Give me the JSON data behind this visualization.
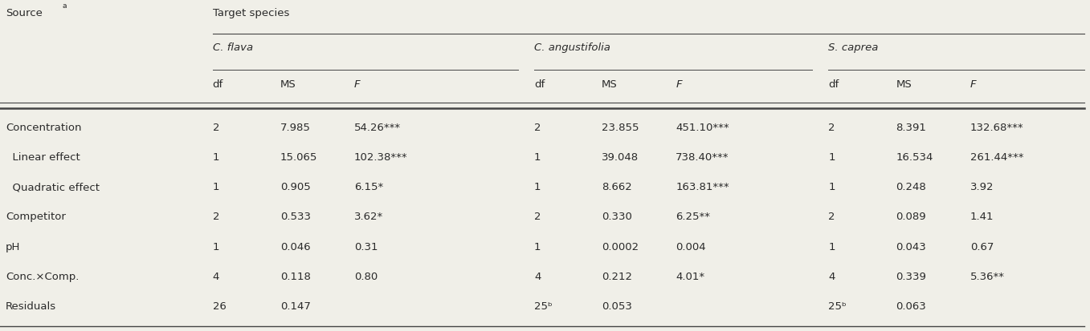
{
  "title_row": "Target species",
  "col_header_source": "Source",
  "source_superscript": "a",
  "species": [
    "C. flava",
    "C. angustifolia",
    "S. caprea"
  ],
  "sub_headers": [
    "df",
    "MS",
    "F"
  ],
  "rows": [
    {
      "source": "Concentration",
      "indent": 0,
      "c_flava": [
        "2",
        "7.985",
        "54.26***"
      ],
      "c_ang": [
        "2",
        "23.855",
        "451.10***"
      ],
      "s_cap": [
        "2",
        "8.391",
        "132.68***"
      ]
    },
    {
      "source": "Linear effect",
      "indent": 1,
      "c_flava": [
        "1",
        "15.065",
        "102.38***"
      ],
      "c_ang": [
        "1",
        "39.048",
        "738.40***"
      ],
      "s_cap": [
        "1",
        "16.534",
        "261.44***"
      ]
    },
    {
      "source": "Quadratic effect",
      "indent": 1,
      "c_flava": [
        "1",
        "0.905",
        "6.15*"
      ],
      "c_ang": [
        "1",
        "8.662",
        "163.81***"
      ],
      "s_cap": [
        "1",
        "0.248",
        "3.92"
      ]
    },
    {
      "source": "Competitor",
      "indent": 0,
      "c_flava": [
        "2",
        "0.533",
        "3.62*"
      ],
      "c_ang": [
        "2",
        "0.330",
        "6.25**"
      ],
      "s_cap": [
        "2",
        "0.089",
        "1.41"
      ]
    },
    {
      "source": "pH",
      "indent": 0,
      "c_flava": [
        "1",
        "0.046",
        "0.31"
      ],
      "c_ang": [
        "1",
        "0.0002",
        "0.004"
      ],
      "s_cap": [
        "1",
        "0.043",
        "0.67"
      ]
    },
    {
      "source": "Conc.×Comp.",
      "indent": 0,
      "c_flava": [
        "4",
        "0.118",
        "0.80"
      ],
      "c_ang": [
        "4",
        "0.212",
        "4.01*"
      ],
      "s_cap": [
        "4",
        "0.339",
        "5.36**"
      ]
    },
    {
      "source": "Residuals",
      "indent": 0,
      "c_flava": [
        "26",
        "0.147",
        ""
      ],
      "c_ang": [
        "25ᵇ",
        "0.053",
        ""
      ],
      "s_cap": [
        "25ᵇ",
        "0.063",
        ""
      ]
    }
  ],
  "bg_color": "#f0efe8",
  "text_color": "#2a2a2a",
  "fontsize": 9.5,
  "figsize": [
    13.57,
    4.14
  ],
  "dpi": 100
}
